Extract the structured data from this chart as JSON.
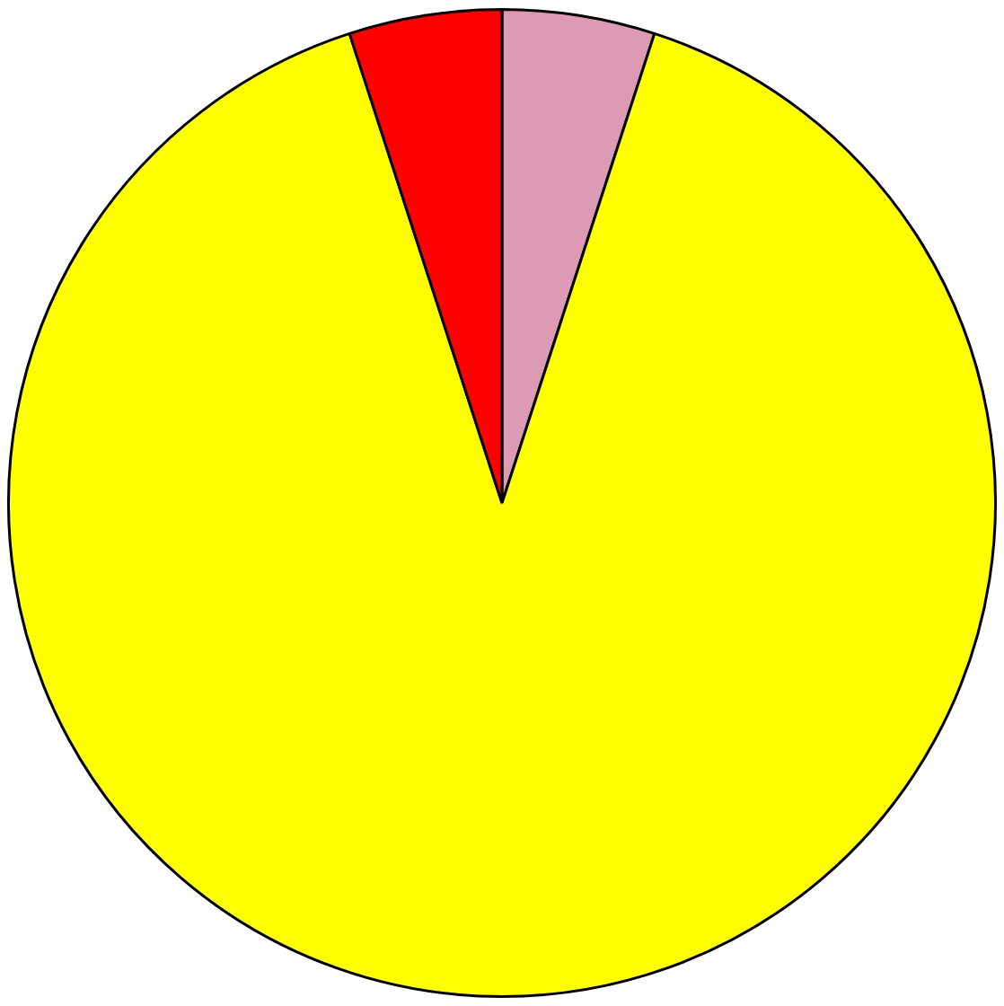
{
  "chart_data": {
    "type": "pie",
    "categories": [
      null,
      null,
      null
    ],
    "values": [
      5,
      90,
      5
    ],
    "colors": [
      "#dd9ab5",
      "#ffff00",
      "#ff0000"
    ],
    "legend": false
  }
}
